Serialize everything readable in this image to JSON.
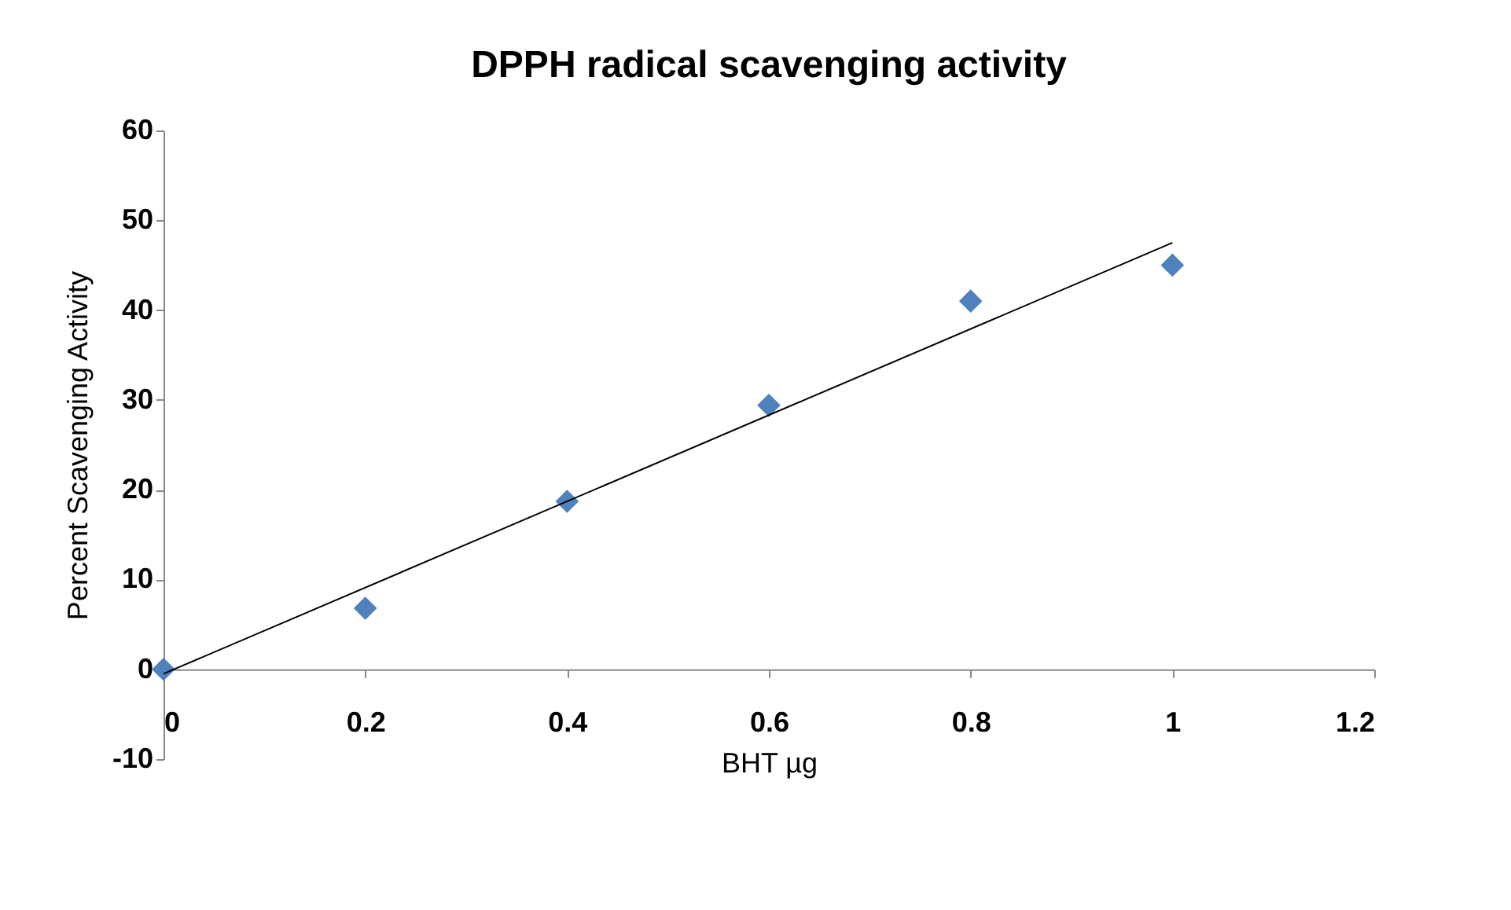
{
  "chart_data": {
    "type": "scatter",
    "title": "DPPH radical scavenging activity",
    "xlabel": "BHT µg",
    "ylabel": "Percent Scavenging Activity",
    "x": [
      0,
      0.2,
      0.4,
      0.6,
      0.8,
      1.0
    ],
    "series": [
      {
        "color": "#4f81bd",
        "values": [
          0,
          6.8,
          18.7,
          29.4,
          41,
          45
        ],
        "marker": "diamond"
      },
      {
        "type": "line",
        "color": "#000000",
        "x": [
          0,
          1.0
        ],
        "values": [
          -0.5,
          47.5
        ],
        "marker": "none",
        "line_style": "solid"
      }
    ],
    "xlim": [
      0,
      1.2
    ],
    "xticks": [
      0,
      0.2,
      0.4,
      0.6,
      0.8,
      1,
      1.2
    ],
    "ylim": [
      -10,
      60
    ],
    "yticks": [
      -10,
      0,
      10,
      20,
      30,
      40,
      50,
      60
    ],
    "grid": false
  }
}
